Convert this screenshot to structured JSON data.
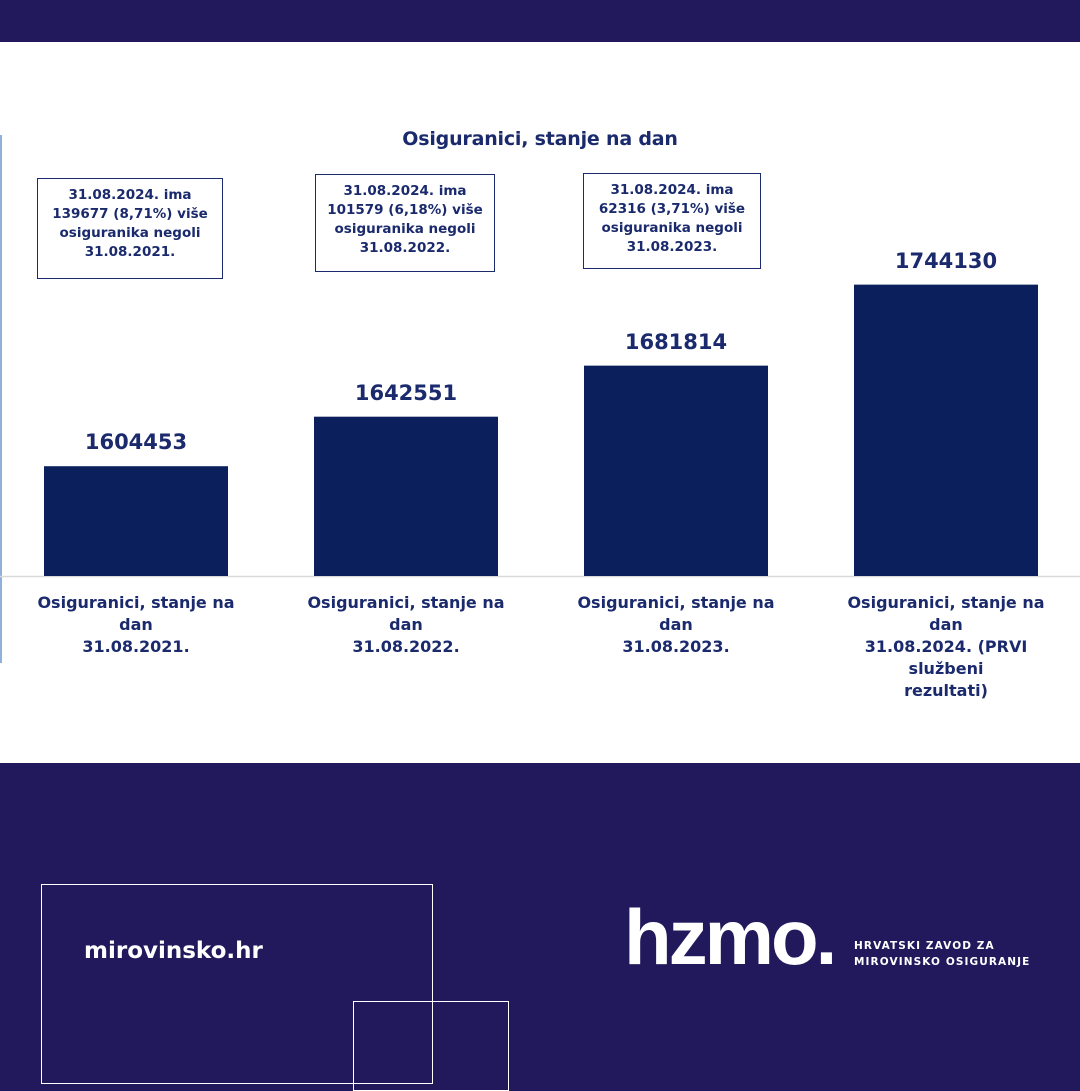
{
  "chart_data": {
    "type": "bar",
    "title": "Osiguranici, stanje na dan",
    "categories": [
      [
        "Osiguranici, stanje na dan",
        "31.08.2021."
      ],
      [
        "Osiguranici, stanje na dan",
        "31.08.2022."
      ],
      [
        "Osiguranici, stanje na dan",
        "31.08.2023."
      ],
      [
        "Osiguranici, stanje na dan",
        "31.08.2024. (PRVI službeni",
        "rezultati)"
      ]
    ],
    "values": [
      1604453,
      1642551,
      1681814,
      1744130
    ],
    "value_labels": [
      "1604453",
      "1642551",
      "1681814",
      "1744130"
    ],
    "ylim": [
      1520000,
      1760000
    ],
    "bar_color": "#0a1f5c",
    "axis_line_color": "#d9d9d9",
    "grid": false,
    "annotations": [
      [
        "31.08.2024. ima",
        "139677 (8,71%) više",
        "osiguranika negoli",
        "31.08.2021."
      ],
      [
        "31.08.2024. ima",
        "101579 (6,18%) više",
        "osiguranika negoli",
        "31.08.2022."
      ],
      [
        "31.08.2024. ima",
        "62316 (3,71%) više",
        "osiguranika negoli",
        "31.08.2023."
      ]
    ]
  },
  "footer": {
    "website": "mirovinsko.hr",
    "logo_word": "hzmo.",
    "logo_subtitle_line1": "HRVATSKI ZAVOD ZA",
    "logo_subtitle_line2": "MIROVINSKO OSIGURANJE",
    "background": "#22195d"
  }
}
